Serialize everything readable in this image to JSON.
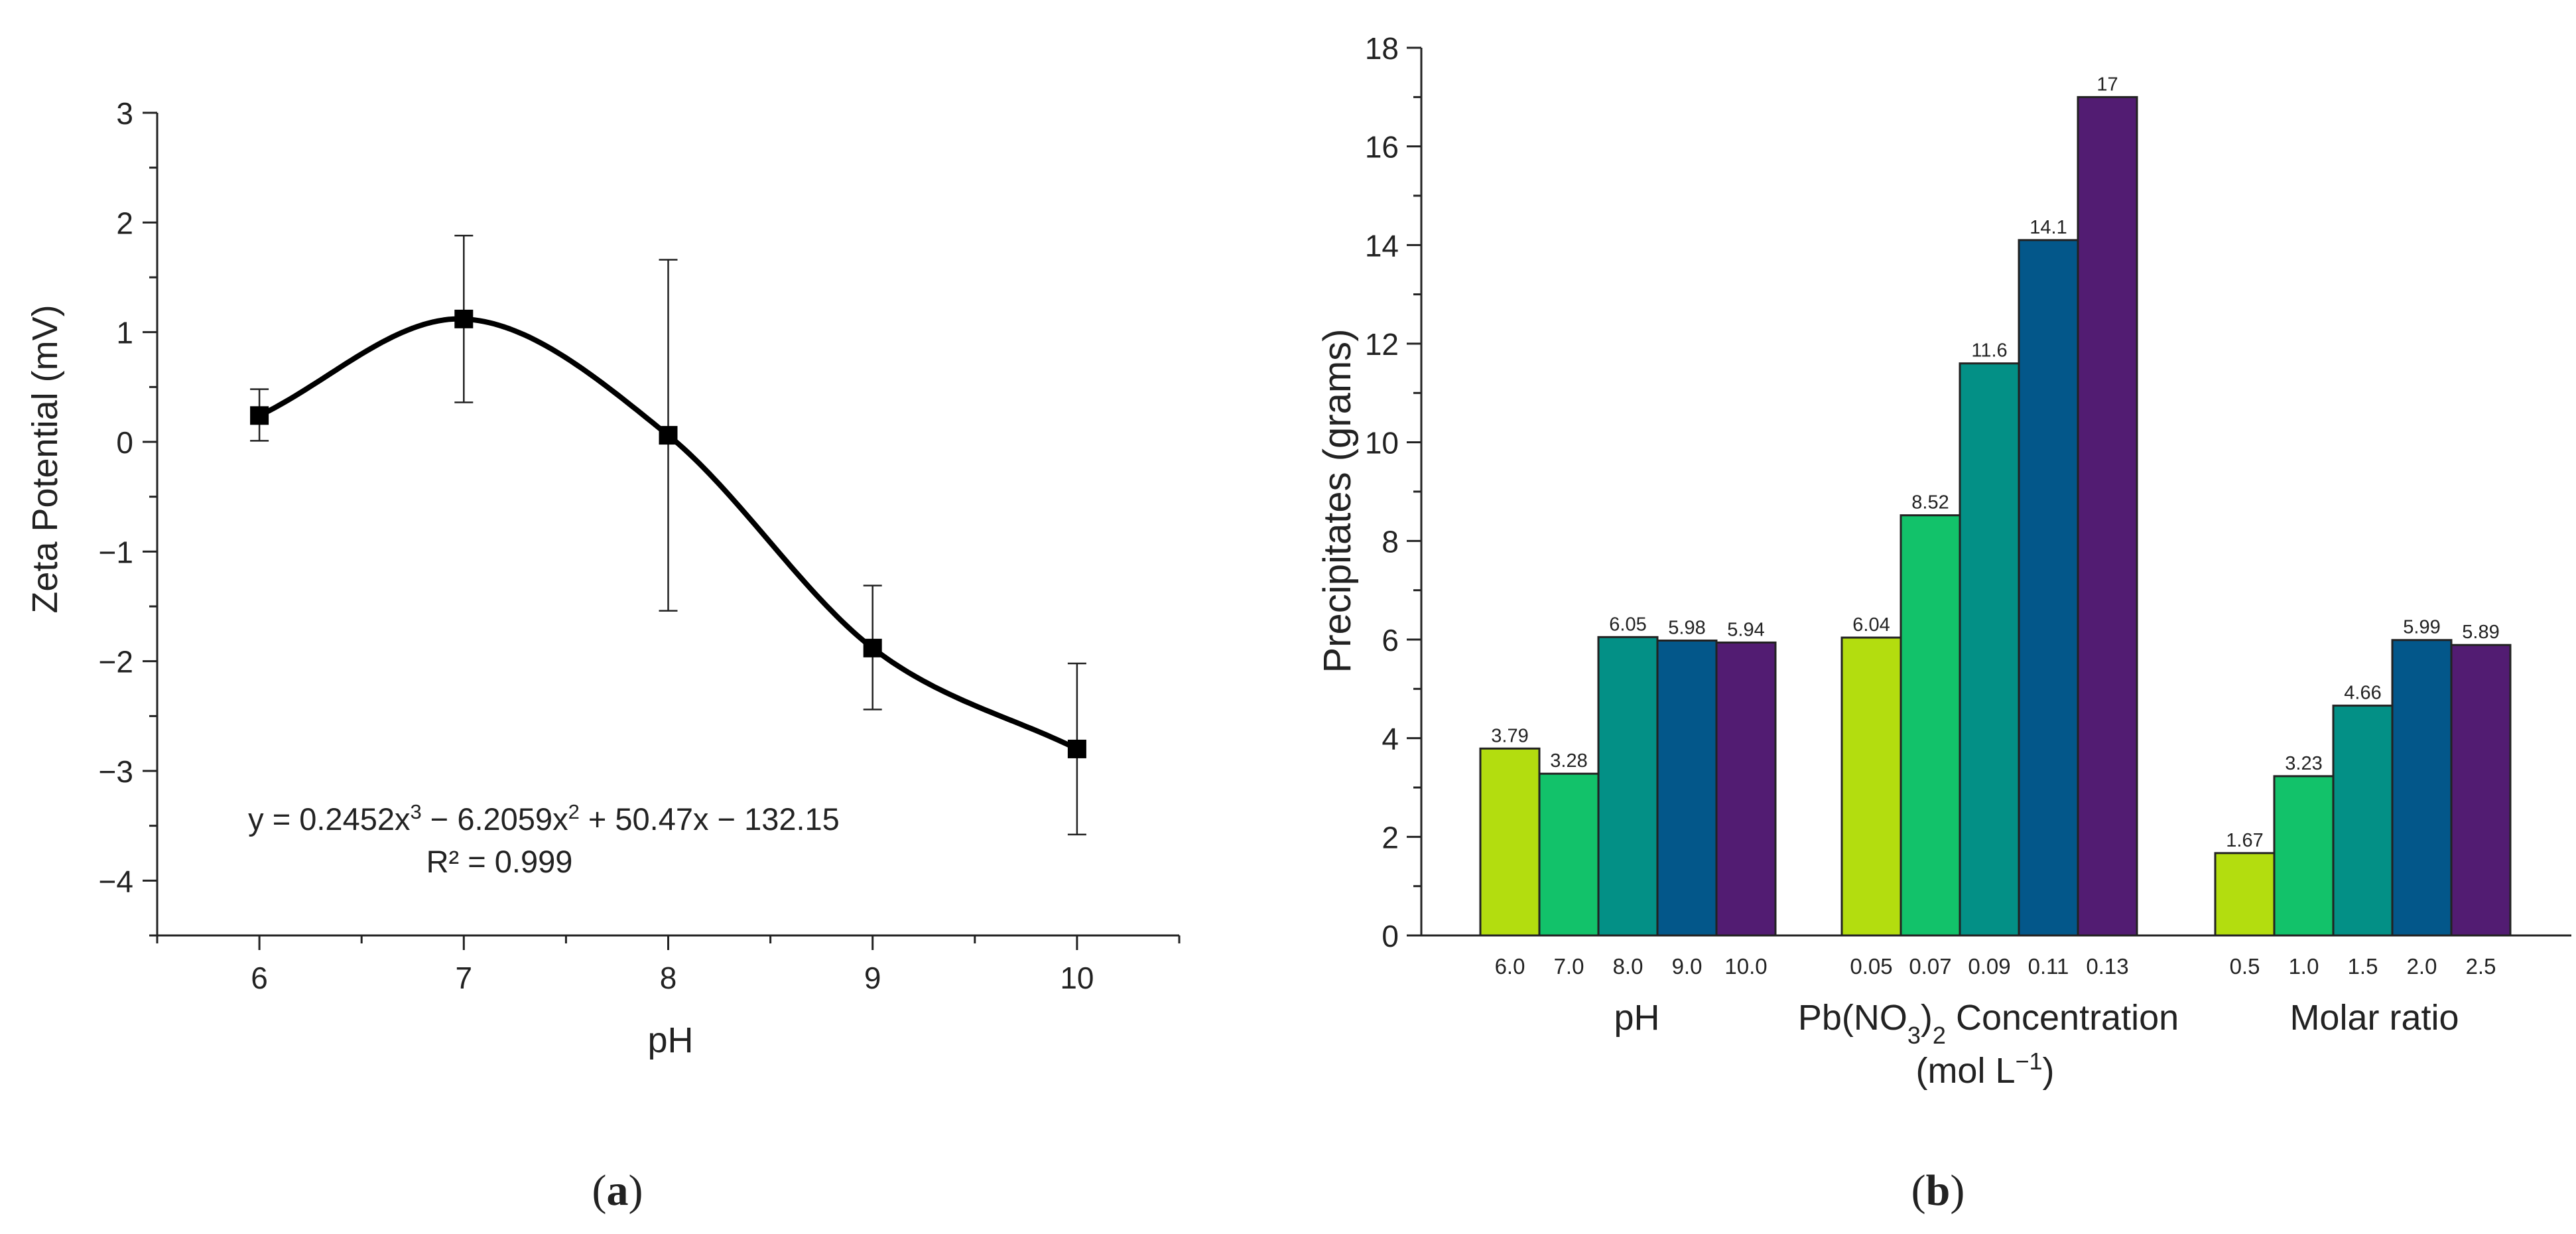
{
  "chart_data": [
    {
      "panel": "a",
      "type": "line",
      "title": "",
      "xlabel": "pH",
      "ylabel": "Zeta Potential (mV)",
      "xlim": [
        5.5,
        10.5
      ],
      "ylim": [
        -4.5,
        3
      ],
      "xticks": [
        6,
        7,
        8,
        9,
        10
      ],
      "yticks": [
        3,
        2,
        1,
        0,
        -1,
        -2,
        -3,
        -4
      ],
      "ytick_labels": [
        "3",
        "2",
        "1",
        "0",
        "−1",
        "−2",
        "−3",
        "−4"
      ],
      "grid": false,
      "legend": "none",
      "points": {
        "x": [
          6,
          7,
          8,
          9,
          10
        ],
        "y": [
          0.24,
          1.12,
          0.06,
          -1.88,
          -2.8
        ],
        "err_low": [
          0.01,
          0.36,
          -1.54,
          -2.44,
          -3.58
        ],
        "err_high": [
          0.48,
          1.88,
          1.66,
          -1.31,
          -2.02
        ]
      },
      "fit": {
        "a": 0.2452,
        "b": -6.2059,
        "c": 50.47,
        "d": -132.15
      },
      "equation": {
        "lead": "y = 0.2452x",
        "sup1": "3",
        "mid": " − 6.2059x",
        "sup2": "2",
        "tail": " + 50.47x − 132.15"
      },
      "r2": "R² = 0.999",
      "panel_label": {
        "open": "(",
        "letter": "a",
        "close": ")"
      }
    },
    {
      "panel": "b",
      "type": "bar",
      "title": "",
      "ylabel": "Precipitates (grams)",
      "ylim": [
        0,
        18
      ],
      "yticks": [
        0,
        2,
        4,
        6,
        8,
        10,
        12,
        14,
        16,
        18
      ],
      "grid": false,
      "legend": "none",
      "colors": [
        "#b3dd0f",
        "#12c26a",
        "#039086",
        "#03578a",
        "#521c72"
      ],
      "groups": [
        {
          "name": "pH",
          "categories": [
            "6.0",
            "7.0",
            "8.0",
            "9.0",
            "10.0"
          ],
          "values": [
            3.79,
            3.28,
            6.05,
            5.98,
            5.94
          ],
          "value_labels": [
            "3.79",
            "3.28",
            "6.05",
            "5.98",
            "5.94"
          ]
        },
        {
          "name": "Pb(NO3)2 Concentration",
          "categories": [
            "0.05",
            "0.07",
            "0.09",
            "0.11",
            "0.13"
          ],
          "values": [
            6.04,
            8.52,
            11.6,
            14.1,
            17
          ],
          "value_labels": [
            "6.04",
            "8.52",
            "11.6",
            "14.1",
            "17"
          ]
        },
        {
          "name": "Molar ratio",
          "categories": [
            "0.5",
            "1.0",
            "1.5",
            "2.0",
            "2.5"
          ],
          "values": [
            1.67,
            3.23,
            4.66,
            5.99,
            5.89
          ],
          "value_labels": [
            "1.67",
            "3.23",
            "4.66",
            "5.99",
            "5.89"
          ]
        }
      ],
      "group_labels": {
        "ph": "pH",
        "conc_a": "Pb(NO",
        "conc_sub1": "3",
        "conc_b": ")",
        "conc_sub2": "2",
        "conc_c": " Concentration",
        "unit_a": "(mol L",
        "unit_sup": "−1",
        "unit_b": ")",
        "molar": "Molar ratio"
      },
      "panel_label": {
        "open": "(",
        "letter": "b",
        "close": ")"
      }
    }
  ]
}
